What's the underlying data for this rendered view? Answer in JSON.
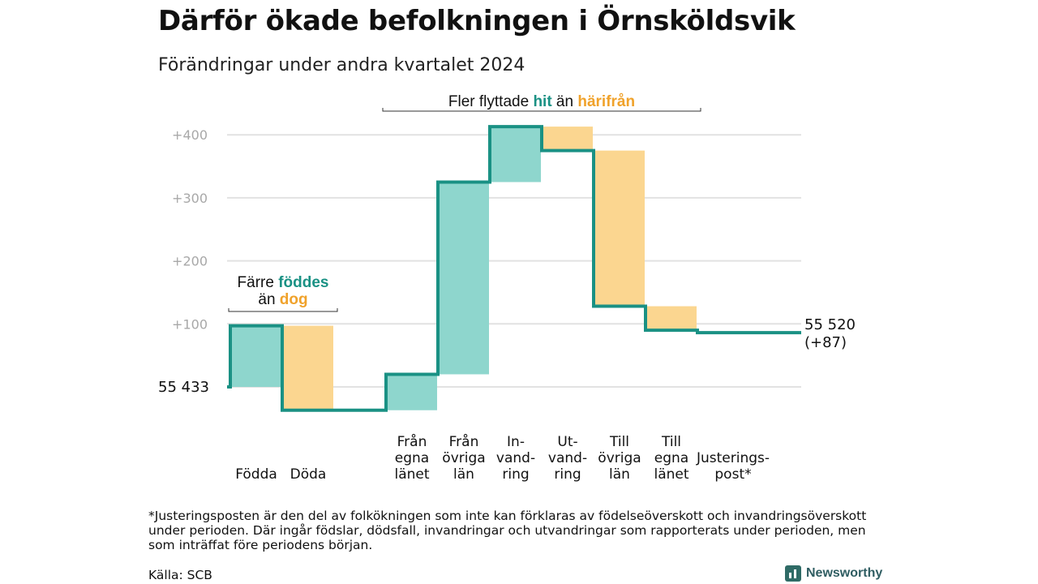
{
  "title": "Därför ökade befolkningen i Örnsköldsvik",
  "subtitle": "Förändringar under andra kvartalet 2024",
  "footnote": "*Justeringsposten är den del av folkökningen som inte kan förklaras av födelseöverskott och invandringsöverskott under perioden. Där ingår födslar, dödsfall, invandringar och utvandringar som rapporterats under perioden, men som inträffat före periodens början.",
  "source": "Källa: SCB",
  "brand": "Newsworthy",
  "annotations": {
    "moves_prefix": "Fler flyttade",
    "moves_hit": "hit",
    "moves_mid": "än",
    "moves_harifran": "härifrån",
    "births_line1": "Färre",
    "births_fodes": "föddes",
    "births_an": "än",
    "births_dog": "dog"
  },
  "colors": {
    "teal": "#1a9184",
    "teal_fill": "#8ed6cd",
    "orange_fill": "#fbd690",
    "orange_text": "#f0a22b",
    "grid": "#e2e2e2",
    "tick": "#a8a8a8"
  },
  "chart_data": {
    "type": "waterfall",
    "start_label": "55  433",
    "end_label_line1": "55 520",
    "end_label_line2": "(+87)",
    "ylim": [
      -40,
      420
    ],
    "yticks": [
      {
        "value": 100,
        "label": "+100"
      },
      {
        "value": 200,
        "label": "+200"
      },
      {
        "value": 300,
        "label": "+300"
      },
      {
        "value": 400,
        "label": "+400"
      }
    ],
    "steps": [
      {
        "name": "Födda",
        "label_lines": [
          "Födda"
        ],
        "delta": 97,
        "kind": "in"
      },
      {
        "name": "Döda",
        "label_lines": [
          "Döda"
        ],
        "delta": -134,
        "kind": "out"
      },
      {
        "name": "gap",
        "label_lines": [],
        "delta": 0,
        "kind": "gap"
      },
      {
        "name": "Från egna länet",
        "label_lines": [
          "Från",
          "egna",
          "länet"
        ],
        "delta": 57,
        "kind": "in"
      },
      {
        "name": "Från övriga län",
        "label_lines": [
          "Från",
          "övriga",
          "län"
        ],
        "delta": 305,
        "kind": "in"
      },
      {
        "name": "Invandring",
        "label_lines": [
          "In-",
          "vand-",
          "ring"
        ],
        "delta": 88,
        "kind": "in"
      },
      {
        "name": "Utvandring",
        "label_lines": [
          "Ut-",
          "vand-",
          "ring"
        ],
        "delta": -38,
        "kind": "out"
      },
      {
        "name": "Till övriga län",
        "label_lines": [
          "Till",
          "övriga",
          "län"
        ],
        "delta": -247,
        "kind": "out"
      },
      {
        "name": "Till egna länet",
        "label_lines": [
          "Till",
          "egna",
          "länet"
        ],
        "delta": -38,
        "kind": "out"
      },
      {
        "name": "Justeringspost",
        "label_lines": [
          "Justerings-",
          "post*"
        ],
        "delta": -4,
        "kind": "adj"
      }
    ]
  }
}
